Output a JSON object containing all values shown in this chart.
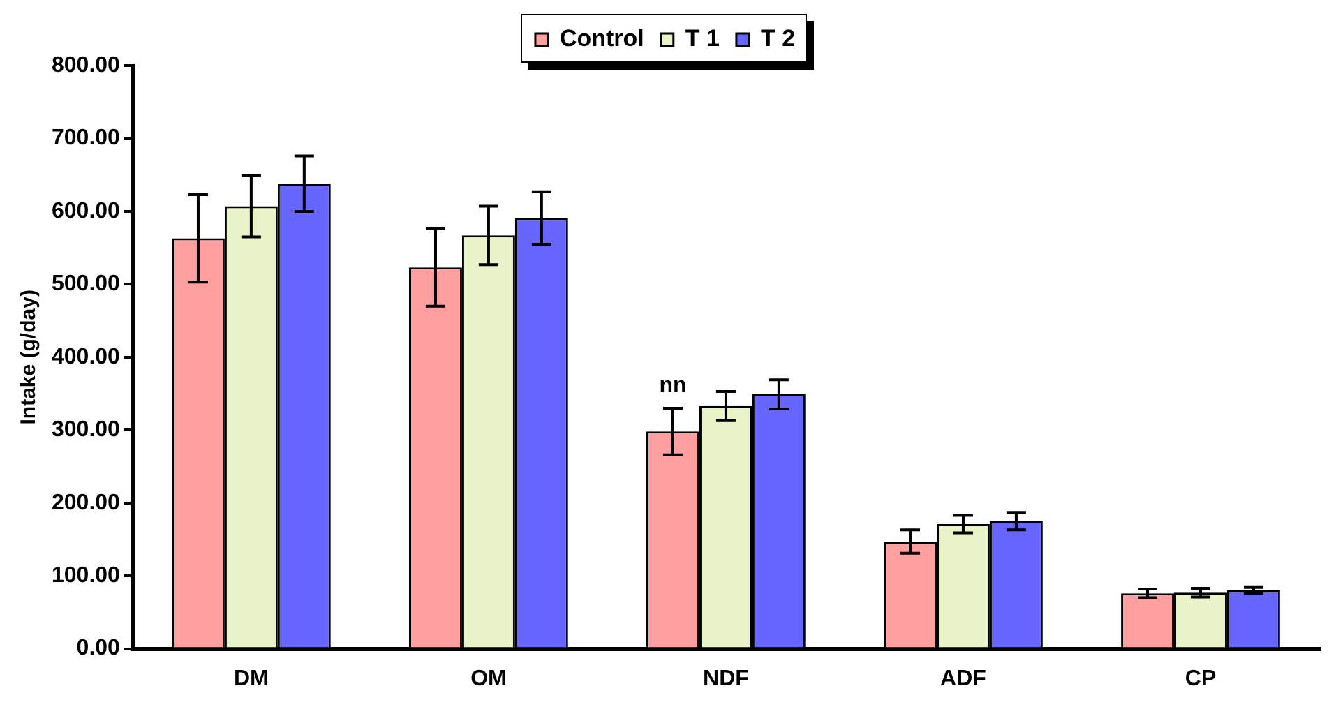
{
  "chart_data": {
    "type": "bar",
    "ylabel": "Intake (g/day)",
    "categories": [
      "DM",
      "OM",
      "NDF",
      "ADF",
      "CP"
    ],
    "series": [
      {
        "name": "Control",
        "color": "#ff9f9f",
        "values": [
          563,
          523,
          298,
          147,
          76
        ],
        "errors": [
          60,
          53,
          32,
          16,
          6
        ]
      },
      {
        "name": "T 1",
        "color": "#e8f3c8",
        "values": [
          607,
          567,
          333,
          171,
          77
        ],
        "errors": [
          42,
          40,
          20,
          12,
          6
        ]
      },
      {
        "name": "T 2",
        "color": "#6666ff",
        "values": [
          638,
          591,
          349,
          175,
          80
        ],
        "errors": [
          38,
          36,
          20,
          12,
          4
        ]
      }
    ],
    "ylim": [
      0,
      800
    ],
    "yticks": [
      {
        "value": 0,
        "label": "0.00"
      },
      {
        "value": 100,
        "label": "100.00"
      },
      {
        "value": 200,
        "label": "200.00"
      },
      {
        "value": 300,
        "label": "300.00"
      },
      {
        "value": 400,
        "label": "400.00"
      },
      {
        "value": 500,
        "label": "500.00"
      },
      {
        "value": 600,
        "label": "600.00"
      },
      {
        "value": 700,
        "label": "700.00"
      },
      {
        "value": 800,
        "label": "800.00"
      }
    ],
    "annotations": [
      {
        "text": "nn",
        "x": "NDF",
        "y": 345
      }
    ],
    "grid": false,
    "legend": "top"
  }
}
